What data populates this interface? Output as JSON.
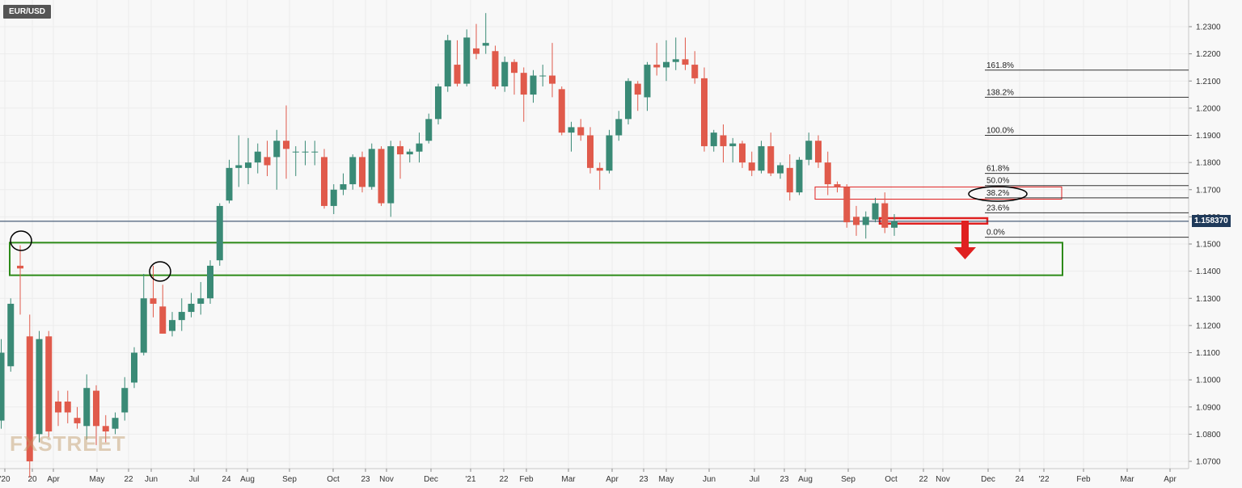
{
  "symbol": "EUR/USD",
  "watermark": "FXSTREET",
  "colors": {
    "bull": "#3a8a76",
    "bear": "#e05a4b",
    "zone_green": "#2e8b1a",
    "zone_red": "#e02020",
    "price_line": "#1f3a5a"
  },
  "chart_data": {
    "type": "candlestick",
    "timeframe": "weekly",
    "ylim": [
      1.0675,
      1.235
    ],
    "y_ticks": [
      "1.0700",
      "1.0800",
      "1.0900",
      "1.1000",
      "1.1100",
      "1.1200",
      "1.1300",
      "1.1400",
      "1.1500",
      "1.1600",
      "1.1700",
      "1.1800",
      "1.1900",
      "1.2000",
      "1.2100",
      "1.2200",
      "1.2300"
    ],
    "x_ticks": [
      "'20",
      "20",
      "Apr",
      "May",
      "22",
      "Jun",
      "Jul",
      "24",
      "Aug",
      "Sep",
      "Oct",
      "23",
      "Nov",
      "Dec",
      "'21",
      "22",
      "Feb",
      "Mar",
      "Apr",
      "23",
      "May",
      "Jun",
      "Jul",
      "23",
      "Aug",
      "Sep",
      "Oct",
      "22",
      "Nov",
      "Dec",
      "24",
      "'22",
      "Feb",
      "Mar",
      "Apr"
    ],
    "current_price": "1.158370",
    "candles": [
      {
        "o": 1.085,
        "h": 1.115,
        "l": 1.082,
        "c": 1.11
      },
      {
        "o": 1.105,
        "h": 1.13,
        "l": 1.103,
        "c": 1.128
      },
      {
        "o": 1.142,
        "h": 1.1495,
        "l": 1.124,
        "c": 1.141
      },
      {
        "o": 1.116,
        "h": 1.124,
        "l": 1.064,
        "c": 1.07
      },
      {
        "o": 1.08,
        "h": 1.118,
        "l": 1.077,
        "c": 1.115
      },
      {
        "o": 1.116,
        "h": 1.118,
        "l": 1.079,
        "c": 1.081
      },
      {
        "o": 1.092,
        "h": 1.096,
        "l": 1.083,
        "c": 1.088
      },
      {
        "o": 1.092,
        "h": 1.096,
        "l": 1.084,
        "c": 1.088
      },
      {
        "o": 1.086,
        "h": 1.09,
        "l": 1.082,
        "c": 1.084
      },
      {
        "o": 1.083,
        "h": 1.102,
        "l": 1.078,
        "c": 1.097
      },
      {
        "o": 1.096,
        "h": 1.098,
        "l": 1.076,
        "c": 1.083
      },
      {
        "o": 1.083,
        "h": 1.087,
        "l": 1.077,
        "c": 1.081
      },
      {
        "o": 1.082,
        "h": 1.088,
        "l": 1.08,
        "c": 1.086
      },
      {
        "o": 1.088,
        "h": 1.101,
        "l": 1.085,
        "c": 1.097
      },
      {
        "o": 1.099,
        "h": 1.112,
        "l": 1.097,
        "c": 1.11
      },
      {
        "o": 1.11,
        "h": 1.139,
        "l": 1.109,
        "c": 1.13
      },
      {
        "o": 1.13,
        "h": 1.142,
        "l": 1.123,
        "c": 1.128
      },
      {
        "o": 1.127,
        "h": 1.135,
        "l": 1.117,
        "c": 1.117
      },
      {
        "o": 1.118,
        "h": 1.125,
        "l": 1.116,
        "c": 1.122
      },
      {
        "o": 1.122,
        "h": 1.13,
        "l": 1.118,
        "c": 1.125
      },
      {
        "o": 1.125,
        "h": 1.132,
        "l": 1.123,
        "c": 1.128
      },
      {
        "o": 1.128,
        "h": 1.136,
        "l": 1.124,
        "c": 1.13
      },
      {
        "o": 1.13,
        "h": 1.144,
        "l": 1.128,
        "c": 1.142
      },
      {
        "o": 1.144,
        "h": 1.165,
        "l": 1.142,
        "c": 1.164
      },
      {
        "o": 1.166,
        "h": 1.181,
        "l": 1.165,
        "c": 1.178
      },
      {
        "o": 1.178,
        "h": 1.19,
        "l": 1.171,
        "c": 1.179
      },
      {
        "o": 1.178,
        "h": 1.189,
        "l": 1.172,
        "c": 1.18
      },
      {
        "o": 1.18,
        "h": 1.187,
        "l": 1.176,
        "c": 1.184
      },
      {
        "o": 1.182,
        "h": 1.188,
        "l": 1.175,
        "c": 1.179
      },
      {
        "o": 1.182,
        "h": 1.192,
        "l": 1.17,
        "c": 1.188
      },
      {
        "o": 1.188,
        "h": 1.201,
        "l": 1.174,
        "c": 1.185
      },
      {
        "o": 1.184,
        "h": 1.186,
        "l": 1.175,
        "c": 1.184
      },
      {
        "o": 1.184,
        "h": 1.188,
        "l": 1.179,
        "c": 1.184
      },
      {
        "o": 1.184,
        "h": 1.188,
        "l": 1.179,
        "c": 1.184
      },
      {
        "o": 1.182,
        "h": 1.185,
        "l": 1.163,
        "c": 1.164
      },
      {
        "o": 1.164,
        "h": 1.172,
        "l": 1.161,
        "c": 1.17
      },
      {
        "o": 1.17,
        "h": 1.176,
        "l": 1.168,
        "c": 1.172
      },
      {
        "o": 1.172,
        "h": 1.183,
        "l": 1.17,
        "c": 1.182
      },
      {
        "o": 1.182,
        "h": 1.184,
        "l": 1.169,
        "c": 1.171
      },
      {
        "o": 1.171,
        "h": 1.187,
        "l": 1.17,
        "c": 1.185
      },
      {
        "o": 1.185,
        "h": 1.186,
        "l": 1.164,
        "c": 1.165
      },
      {
        "o": 1.165,
        "h": 1.188,
        "l": 1.16,
        "c": 1.186
      },
      {
        "o": 1.186,
        "h": 1.188,
        "l": 1.174,
        "c": 1.183
      },
      {
        "o": 1.183,
        "h": 1.185,
        "l": 1.18,
        "c": 1.184
      },
      {
        "o": 1.184,
        "h": 1.191,
        "l": 1.18,
        "c": 1.187
      },
      {
        "o": 1.188,
        "h": 1.198,
        "l": 1.187,
        "c": 1.196
      },
      {
        "o": 1.196,
        "h": 1.209,
        "l": 1.194,
        "c": 1.208
      },
      {
        "o": 1.208,
        "h": 1.227,
        "l": 1.206,
        "c": 1.225
      },
      {
        "o": 1.216,
        "h": 1.225,
        "l": 1.208,
        "c": 1.209
      },
      {
        "o": 1.209,
        "h": 1.229,
        "l": 1.208,
        "c": 1.226
      },
      {
        "o": 1.222,
        "h": 1.231,
        "l": 1.218,
        "c": 1.22
      },
      {
        "o": 1.223,
        "h": 1.235,
        "l": 1.22,
        "c": 1.224
      },
      {
        "o": 1.221,
        "h": 1.223,
        "l": 1.207,
        "c": 1.208
      },
      {
        "o": 1.208,
        "h": 1.219,
        "l": 1.206,
        "c": 1.217
      },
      {
        "o": 1.217,
        "h": 1.218,
        "l": 1.205,
        "c": 1.213
      },
      {
        "o": 1.213,
        "h": 1.215,
        "l": 1.195,
        "c": 1.205
      },
      {
        "o": 1.205,
        "h": 1.214,
        "l": 1.202,
        "c": 1.212
      },
      {
        "o": 1.212,
        "h": 1.216,
        "l": 1.208,
        "c": 1.212
      },
      {
        "o": 1.212,
        "h": 1.224,
        "l": 1.204,
        "c": 1.209
      },
      {
        "o": 1.207,
        "h": 1.208,
        "l": 1.19,
        "c": 1.191
      },
      {
        "o": 1.191,
        "h": 1.195,
        "l": 1.184,
        "c": 1.193
      },
      {
        "o": 1.193,
        "h": 1.196,
        "l": 1.188,
        "c": 1.19
      },
      {
        "o": 1.19,
        "h": 1.193,
        "l": 1.176,
        "c": 1.178
      },
      {
        "o": 1.178,
        "h": 1.18,
        "l": 1.17,
        "c": 1.177
      },
      {
        "o": 1.177,
        "h": 1.192,
        "l": 1.176,
        "c": 1.19
      },
      {
        "o": 1.19,
        "h": 1.199,
        "l": 1.188,
        "c": 1.196
      },
      {
        "o": 1.196,
        "h": 1.211,
        "l": 1.194,
        "c": 1.21
      },
      {
        "o": 1.209,
        "h": 1.21,
        "l": 1.199,
        "c": 1.205
      },
      {
        "o": 1.204,
        "h": 1.217,
        "l": 1.199,
        "c": 1.216
      },
      {
        "o": 1.216,
        "h": 1.224,
        "l": 1.212,
        "c": 1.215
      },
      {
        "o": 1.215,
        "h": 1.225,
        "l": 1.21,
        "c": 1.217
      },
      {
        "o": 1.217,
        "h": 1.226,
        "l": 1.214,
        "c": 1.218
      },
      {
        "o": 1.218,
        "h": 1.226,
        "l": 1.214,
        "c": 1.216
      },
      {
        "o": 1.216,
        "h": 1.221,
        "l": 1.209,
        "c": 1.211
      },
      {
        "o": 1.211,
        "h": 1.215,
        "l": 1.184,
        "c": 1.186
      },
      {
        "o": 1.186,
        "h": 1.192,
        "l": 1.184,
        "c": 1.191
      },
      {
        "o": 1.19,
        "h": 1.194,
        "l": 1.18,
        "c": 1.186
      },
      {
        "o": 1.186,
        "h": 1.189,
        "l": 1.18,
        "c": 1.187
      },
      {
        "o": 1.187,
        "h": 1.188,
        "l": 1.178,
        "c": 1.18
      },
      {
        "o": 1.18,
        "h": 1.184,
        "l": 1.175,
        "c": 1.177
      },
      {
        "o": 1.177,
        "h": 1.188,
        "l": 1.176,
        "c": 1.186
      },
      {
        "o": 1.186,
        "h": 1.191,
        "l": 1.175,
        "c": 1.176
      },
      {
        "o": 1.176,
        "h": 1.18,
        "l": 1.174,
        "c": 1.179
      },
      {
        "o": 1.178,
        "h": 1.183,
        "l": 1.166,
        "c": 1.169
      },
      {
        "o": 1.169,
        "h": 1.182,
        "l": 1.168,
        "c": 1.181
      },
      {
        "o": 1.181,
        "h": 1.191,
        "l": 1.179,
        "c": 1.188
      },
      {
        "o": 1.188,
        "h": 1.19,
        "l": 1.178,
        "c": 1.18
      },
      {
        "o": 1.18,
        "h": 1.184,
        "l": 1.168,
        "c": 1.172
      },
      {
        "o": 1.172,
        "h": 1.173,
        "l": 1.169,
        "c": 1.171
      },
      {
        "o": 1.171,
        "h": 1.172,
        "l": 1.156,
        "c": 1.158
      },
      {
        "o": 1.16,
        "h": 1.164,
        "l": 1.153,
        "c": 1.157
      },
      {
        "o": 1.157,
        "h": 1.162,
        "l": 1.152,
        "c": 1.16
      },
      {
        "o": 1.159,
        "h": 1.167,
        "l": 1.158,
        "c": 1.165
      },
      {
        "o": 1.165,
        "h": 1.169,
        "l": 1.154,
        "c": 1.156
      },
      {
        "o": 1.156,
        "h": 1.161,
        "l": 1.153,
        "c": 1.1584
      }
    ],
    "fib_levels": [
      {
        "label": "161.8%",
        "price": 1.214
      },
      {
        "label": "138.2%",
        "price": 1.204
      },
      {
        "label": "100.0%",
        "price": 1.19
      },
      {
        "label": "61.8%",
        "price": 1.176
      },
      {
        "label": "50.0%",
        "price": 1.1715
      },
      {
        "label": "38.2%",
        "price": 1.167
      },
      {
        "label": "23.6%",
        "price": 1.1615
      },
      {
        "label": "0.0%",
        "price": 1.1525
      }
    ],
    "zones": [
      {
        "name": "support-zone",
        "color": "green",
        "from": 1.1385,
        "to": 1.1505
      },
      {
        "name": "resistance-box",
        "color": "red",
        "from": 1.1665,
        "to": 1.171
      },
      {
        "name": "breakdown-box",
        "color": "red",
        "from": 1.1575,
        "to": 1.1595
      }
    ]
  }
}
